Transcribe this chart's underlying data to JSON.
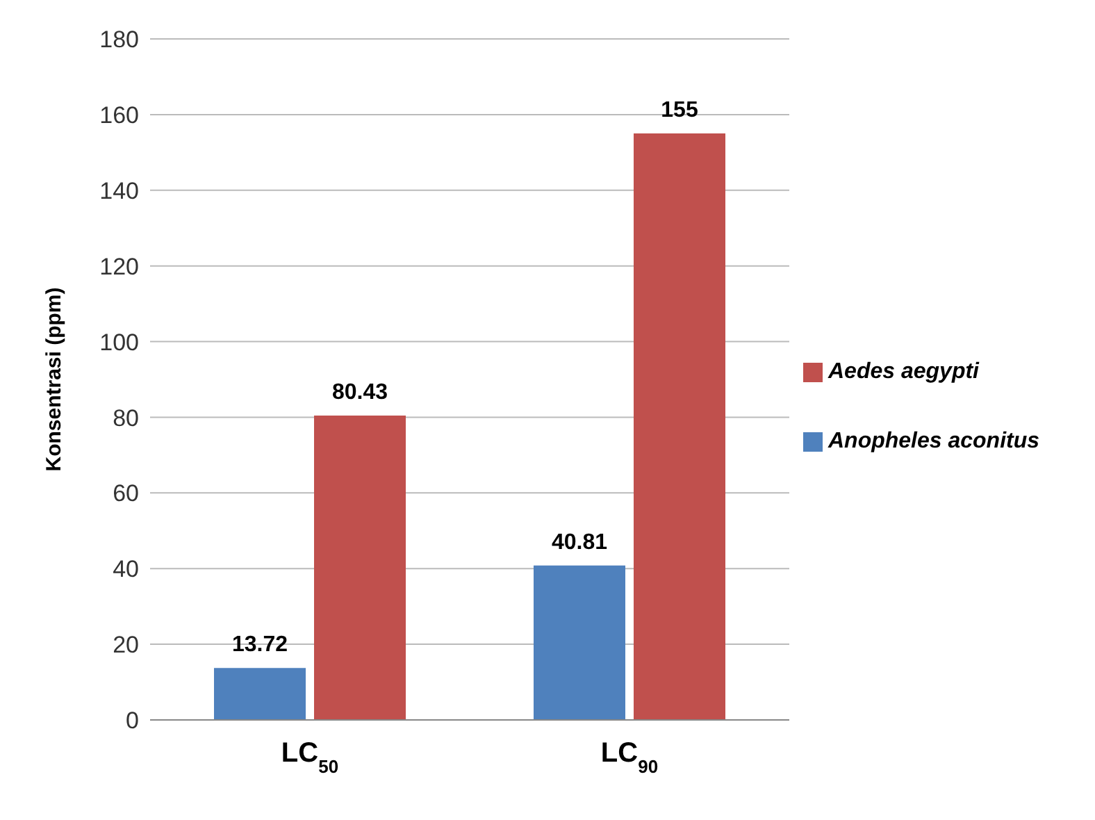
{
  "chart_data": {
    "type": "bar",
    "ylabel": "Konsentrasi (ppm)",
    "categories": [
      "LC$_{50}$",
      "LC$_{90}$"
    ],
    "series": [
      {
        "name": "Anopheles aconitus",
        "color": "#4f81bd",
        "values": [
          13.72,
          40.81
        ]
      },
      {
        "name": "Aedes aegypti",
        "color": "#c0504d",
        "values": [
          80.43,
          155
        ]
      }
    ],
    "ylim": [
      0,
      180
    ],
    "yticks": [
      0,
      20,
      40,
      60,
      80,
      100,
      120,
      140,
      160,
      180
    ],
    "grid": "y",
    "legend": "right",
    "data_labels": true
  }
}
